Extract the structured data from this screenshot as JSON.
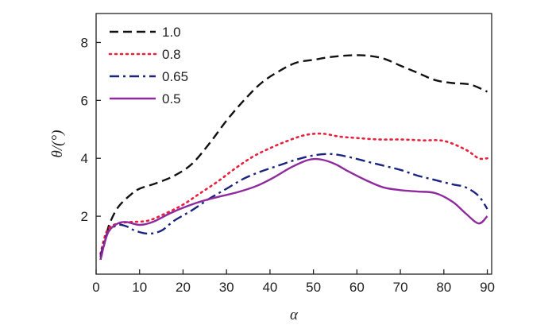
{
  "chart_data": {
    "type": "line",
    "title": "",
    "xlabel": "α",
    "ylabel": "θ/(°)",
    "xlim": [
      0,
      91
    ],
    "ylim": [
      0,
      9
    ],
    "x_ticks": [
      0,
      10,
      20,
      30,
      40,
      50,
      60,
      70,
      80,
      90
    ],
    "y_ticks": [
      2,
      4,
      6,
      8
    ],
    "grid": false,
    "legend_position": "top-left",
    "series": [
      {
        "name": "1.0",
        "color": "#111111",
        "dash": "dashed",
        "x": [
          1,
          2,
          3,
          5,
          8,
          10,
          14,
          18,
          22,
          26,
          30,
          34,
          38,
          42,
          46,
          50,
          54,
          58,
          62,
          66,
          70,
          74,
          78,
          82,
          86,
          90
        ],
        "y": [
          0.5,
          1.1,
          1.7,
          2.3,
          2.75,
          2.95,
          3.15,
          3.4,
          3.8,
          4.5,
          5.3,
          6.0,
          6.6,
          7.0,
          7.3,
          7.4,
          7.5,
          7.55,
          7.55,
          7.45,
          7.2,
          6.95,
          6.7,
          6.6,
          6.55,
          6.3
        ]
      },
      {
        "name": "0.8",
        "color": "#e8203c",
        "dash": "dotted",
        "x": [
          1,
          2,
          3,
          5,
          8,
          12,
          16,
          20,
          24,
          28,
          32,
          36,
          40,
          44,
          48,
          52,
          56,
          60,
          65,
          70,
          75,
          80,
          85,
          88,
          90
        ],
        "y": [
          0.7,
          1.3,
          1.6,
          1.75,
          1.8,
          1.85,
          2.1,
          2.4,
          2.8,
          3.2,
          3.65,
          4.05,
          4.35,
          4.6,
          4.8,
          4.85,
          4.75,
          4.7,
          4.65,
          4.65,
          4.62,
          4.6,
          4.3,
          4.0,
          4.0
        ]
      },
      {
        "name": "0.65",
        "color": "#1a237e",
        "dash": "dashdot",
        "x": [
          1,
          2,
          3,
          5,
          7,
          9,
          12,
          15,
          18,
          22,
          26,
          30,
          34,
          38,
          42,
          46,
          50,
          54,
          58,
          62,
          66,
          70,
          74,
          78,
          82,
          85,
          88,
          90
        ],
        "y": [
          0.6,
          1.2,
          1.5,
          1.7,
          1.65,
          1.5,
          1.4,
          1.5,
          1.85,
          2.2,
          2.6,
          2.95,
          3.3,
          3.55,
          3.75,
          3.95,
          4.1,
          4.15,
          4.05,
          3.9,
          3.75,
          3.6,
          3.4,
          3.25,
          3.1,
          3.0,
          2.7,
          2.25
        ]
      },
      {
        "name": "0.5",
        "color": "#8e2a9e",
        "dash": "solid",
        "x": [
          1,
          2,
          3,
          5,
          7,
          10,
          13,
          17,
          21,
          25,
          29,
          33,
          37,
          41,
          45,
          49,
          52,
          55,
          58,
          62,
          66,
          70,
          74,
          78,
          82,
          85,
          88,
          90
        ],
        "y": [
          0.5,
          1.1,
          1.5,
          1.75,
          1.8,
          1.7,
          1.8,
          2.1,
          2.35,
          2.55,
          2.7,
          2.85,
          3.05,
          3.35,
          3.7,
          3.95,
          3.95,
          3.8,
          3.55,
          3.25,
          3.0,
          2.9,
          2.85,
          2.8,
          2.5,
          2.1,
          1.75,
          2.0
        ]
      }
    ]
  }
}
